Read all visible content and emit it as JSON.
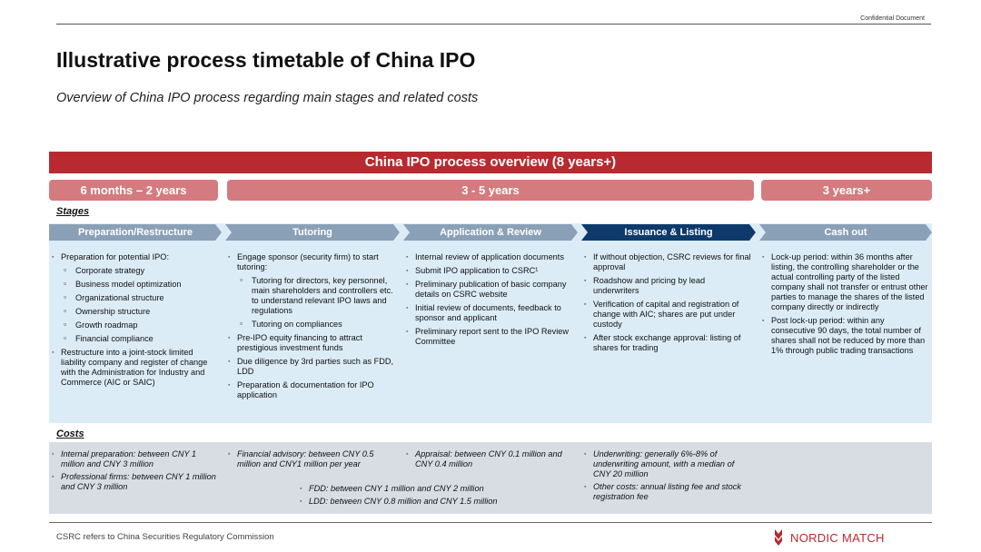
{
  "header": {
    "confidential": "Confidential Document"
  },
  "title": "Illustrative process timetable of China IPO",
  "subtitle": "Overview of China IPO process regarding main stages and related costs",
  "overview": "China IPO process overview (8 years+)",
  "durations": [
    "6 months – 2 years",
    "3 - 5 years",
    "3 years+"
  ],
  "labels": {
    "stages": "Stages",
    "costs": "Costs"
  },
  "stages": [
    {
      "name": "Preparation/Restructure"
    },
    {
      "name": "Tutoring"
    },
    {
      "name": "Application & Review"
    },
    {
      "name": "Issuance & Listing"
    },
    {
      "name": "Cash out"
    }
  ],
  "col1": {
    "b1": "Preparation for potential IPO:",
    "subs": [
      "Corporate strategy",
      "Business model optimization",
      "Organizational structure",
      "Ownership structure",
      "Growth roadmap",
      "Financial compliance"
    ],
    "b2": "Restructure into a joint-stock limited liability company and register of change with the Administration for Industry and Commerce (AIC or SAIC)"
  },
  "col2": {
    "b1": "Engage sponsor (security firm) to start tutoring:",
    "subs": [
      "Tutoring for directors, key personnel, main shareholders and controllers etc. to understand relevant IPO laws and regulations",
      "Tutoring on compliances"
    ],
    "b2": "Pre-IPO equity financing to attract prestigious investment funds",
    "b3": "Due diligence by 3rd parties such as FDD, LDD",
    "b4": "Preparation & documentation for IPO application"
  },
  "col3": {
    "b1": "Internal review of application documents",
    "b2": "Submit IPO application to CSRC¹",
    "b3": "Preliminary publication of basic company details on CSRC website",
    "b4": "Initial review of documents, feedback to sponsor and applicant",
    "b5": "Preliminary report sent to the IPO Review Committee"
  },
  "col4": {
    "b1": "If without objection, CSRC reviews for final approval",
    "b2": "Roadshow and pricing by lead underwriters",
    "b3": "Verification of capital and registration of change with AIC; shares are put under custody",
    "b4": "After stock exchange approval: listing of shares for trading"
  },
  "col5": {
    "b1": "Lock-up period: within 36 months after listing, the controlling shareholder or the actual controlling party of the listed company shall not transfer or entrust other parties to manage the shares of the listed company directly or indirectly",
    "b2": "Post lock-up period: within any consecutive 90 days, the total number of shares shall not be reduced by more than 1% through public trading transactions"
  },
  "costs": {
    "c1a": "Internal preparation: between CNY 1 million and CNY 3 million",
    "c1b": "Professional firms: between CNY 1 million and CNY 3 million",
    "c2": "Financial advisory: between CNY 0.5 million and CNY1 million per year",
    "c3": "Appraisal: between CNY 0.1 million and CNY 0.4 million",
    "c4a": "Underwriting: generally 6%-8% of underwriting amount, with a median of CNY 20 million",
    "c4b": "Other costs: annual listing fee and stock registration fee",
    "fdd": "FDD: between CNY 1 million and CNY 2 million",
    "ldd": "LDD: between CNY 0.8 million and CNY 1.5 million"
  },
  "footer": {
    "footnote": "CSRC refers to China Securities Regulatory Commission",
    "logo": "NORDIC MATCH"
  },
  "colors": {
    "brand_red": "#b82a2f",
    "duration_bar": "#d37b7f",
    "stage_chevron": "#8aa0b7",
    "active_chevron": "#0d3a6b",
    "stage_bg": "#dcecf7",
    "cost_bg": "#d8dde4"
  }
}
